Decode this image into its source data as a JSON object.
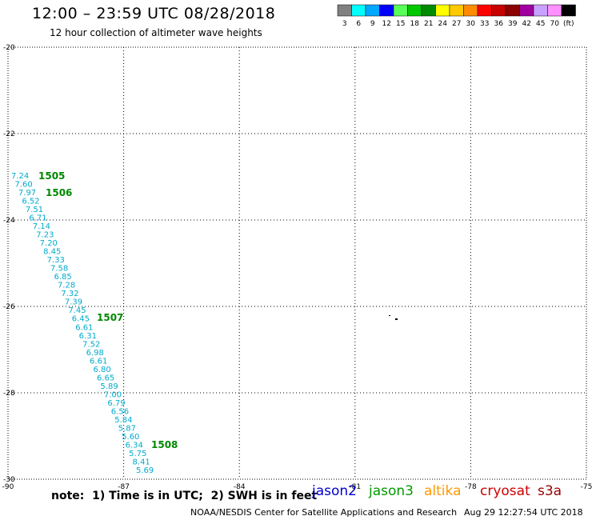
{
  "header": {
    "title": "12:00 – 23:59 UTC 08/28/2018",
    "subtitle": "12 hour collection of altimeter wave heights"
  },
  "legend": {
    "unit": "(ft)",
    "bins": [
      {
        "label": "3",
        "color": "#808080"
      },
      {
        "label": "6",
        "color": "#00ffff"
      },
      {
        "label": "9",
        "color": "#00a8ff"
      },
      {
        "label": "12",
        "color": "#0000ff"
      },
      {
        "label": "15",
        "color": "#58ff58"
      },
      {
        "label": "18",
        "color": "#00c800"
      },
      {
        "label": "21",
        "color": "#008c00"
      },
      {
        "label": "24",
        "color": "#ffff00"
      },
      {
        "label": "27",
        "color": "#ffc800"
      },
      {
        "label": "30",
        "color": "#ff8c00"
      },
      {
        "label": "33",
        "color": "#ff0000"
      },
      {
        "label": "36",
        "color": "#c80000"
      },
      {
        "label": "39",
        "color": "#8c0000"
      },
      {
        "label": "42",
        "color": "#a000a0"
      },
      {
        "label": "45",
        "color": "#c8a0ff"
      },
      {
        "label": "70",
        "color": "#ff90ff"
      },
      {
        "label": "",
        "color": "#000000"
      }
    ]
  },
  "map": {
    "lon_labels": [
      "-90",
      "-87",
      "-84",
      "-81",
      "-78",
      "-75"
    ],
    "lat_labels": [
      "-20",
      "-22",
      "-24",
      "-26",
      "-28",
      "-30"
    ],
    "track_color": "#00aacc",
    "track_values": [
      "7.24",
      "7.60",
      "7.97",
      "6.52",
      "7.51",
      "6.71",
      "7.14",
      "7.23",
      "7.20",
      "8.45",
      "7.33",
      "7.58",
      "6.85",
      "7.28",
      "7.32",
      "7.39",
      "7.45",
      "6.45",
      "6.61",
      "6.31",
      "7.52",
      "6.98",
      "6.61",
      "6.80",
      "6.65",
      "5.89",
      "7.00",
      "6.79",
      "6.56",
      "5.84",
      "5.87",
      "5.60",
      "6.34",
      "5.75",
      "8.41",
      "5.69"
    ],
    "time_color": "#008800",
    "time_labels": [
      "1505",
      "1506",
      "1507",
      "1508"
    ]
  },
  "note": "note:  1) Time is in UTC;  2) SWH is in feet",
  "satellites": [
    {
      "name": "jason2",
      "color": "#0000cc"
    },
    {
      "name": "jason3",
      "color": "#009900"
    },
    {
      "name": "altika",
      "color": "#ff9900"
    },
    {
      "name": "cryosat",
      "color": "#cc0000"
    },
    {
      "name": "s3a",
      "color": "#990000"
    }
  ],
  "footer": "NOAA/NESDIS Center for Satellite Applications and Research",
  "timestamp": "Aug 29 12:27:54 UTC 2018"
}
